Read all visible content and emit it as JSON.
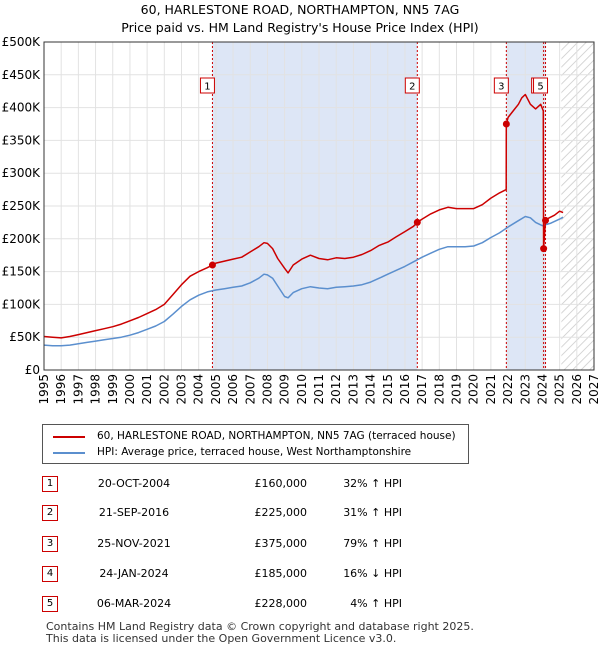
{
  "title_line1": "60, HARLESTONE ROAD, NORTHAMPTON, NN5 7AG",
  "title_line2": "Price paid vs. HM Land Registry's House Price Index (HPI)",
  "chart_data": {
    "type": "line",
    "xlim": [
      1995,
      2027
    ],
    "ylim": [
      0,
      500000
    ],
    "x_ticks": [
      "1995",
      "1996",
      "1997",
      "1998",
      "1999",
      "2000",
      "2001",
      "2002",
      "2003",
      "2004",
      "2005",
      "2006",
      "2007",
      "2008",
      "2009",
      "2010",
      "2011",
      "2012",
      "2013",
      "2014",
      "2015",
      "2016",
      "2017",
      "2018",
      "2019",
      "2020",
      "2021",
      "2022",
      "2023",
      "2024",
      "2025",
      "2026",
      "2027"
    ],
    "y_ticks": [
      {
        "value": 0,
        "label": "£0"
      },
      {
        "value": 50000,
        "label": "£50K"
      },
      {
        "value": 100000,
        "label": "£100K"
      },
      {
        "value": 150000,
        "label": "£150K"
      },
      {
        "value": 200000,
        "label": "£200K"
      },
      {
        "value": 250000,
        "label": "£250K"
      },
      {
        "value": 300000,
        "label": "£300K"
      },
      {
        "value": 350000,
        "label": "£350K"
      },
      {
        "value": 400000,
        "label": "£400K"
      },
      {
        "value": 450000,
        "label": "£450K"
      },
      {
        "value": 500000,
        "label": "£500K"
      }
    ],
    "shaded_ranges": [
      [
        2004.8,
        2016.72
      ],
      [
        2021.9,
        2024.18
      ]
    ],
    "future_hatch_from": 2025.1,
    "colors": {
      "property": "#cc0000",
      "hpi": "#5b8fce",
      "shade": "#dde6f6",
      "vline": "#cc0000"
    },
    "series": [
      {
        "name": "60, HARLESTONE ROAD, NORTHAMPTON, NN5 7AG (terraced house)",
        "x": [
          1995,
          1995.5,
          1996,
          1996.5,
          1997,
          1997.5,
          1998,
          1998.5,
          1999,
          1999.5,
          2000,
          2000.5,
          2001,
          2001.5,
          2002,
          2002.5,
          2003,
          2003.5,
          2004,
          2004.5,
          2004.8,
          2005,
          2005.5,
          2006,
          2006.5,
          2007,
          2007.5,
          2007.8,
          2008,
          2008.3,
          2008.6,
          2009,
          2009.2,
          2009.5,
          2010,
          2010.5,
          2011,
          2011.5,
          2012,
          2012.5,
          2013,
          2013.5,
          2014,
          2014.5,
          2015,
          2015.5,
          2016,
          2016.5,
          2016.72,
          2017,
          2017.5,
          2018,
          2018.5,
          2019,
          2019.5,
          2020,
          2020.5,
          2021,
          2021.5,
          2021.89,
          2021.9,
          2022,
          2022.3,
          2022.6,
          2022.8,
          2023,
          2023.3,
          2023.6,
          2023.9,
          2024.05,
          2024.07,
          2024.18,
          2024.4,
          2024.7,
          2025,
          2025.2
        ],
        "values": [
          51000,
          50000,
          49000,
          51000,
          54000,
          57000,
          60000,
          63000,
          66000,
          70000,
          75000,
          80000,
          86000,
          92000,
          100000,
          115000,
          130000,
          143000,
          150000,
          156000,
          160000,
          163000,
          166000,
          169000,
          172000,
          180000,
          188000,
          194000,
          193000,
          185000,
          170000,
          155000,
          148000,
          160000,
          169000,
          175000,
          170000,
          168000,
          171000,
          170000,
          172000,
          176000,
          182000,
          190000,
          195000,
          203000,
          211000,
          219000,
          225000,
          230000,
          238000,
          244000,
          248000,
          246000,
          246000,
          246000,
          252000,
          262000,
          270000,
          275000,
          375000,
          385000,
          395000,
          405000,
          415000,
          420000,
          405000,
          398000,
          405000,
          395000,
          185000,
          228000,
          232000,
          236000,
          242000,
          240000
        ]
      },
      {
        "name": "HPI: Average price, terraced house, West Northamptonshire",
        "x": [
          1995,
          1995.5,
          1996,
          1996.5,
          1997,
          1997.5,
          1998,
          1998.5,
          1999,
          1999.5,
          2000,
          2000.5,
          2001,
          2001.5,
          2002,
          2002.5,
          2003,
          2003.5,
          2004,
          2004.5,
          2005,
          2005.5,
          2006,
          2006.5,
          2007,
          2007.5,
          2007.8,
          2008,
          2008.3,
          2008.6,
          2009,
          2009.2,
          2009.5,
          2010,
          2010.5,
          2011,
          2011.5,
          2012,
          2012.5,
          2013,
          2013.5,
          2014,
          2014.5,
          2015,
          2015.5,
          2016,
          2016.5,
          2017,
          2017.5,
          2018,
          2018.5,
          2019,
          2019.5,
          2020,
          2020.5,
          2021,
          2021.5,
          2022,
          2022.5,
          2023,
          2023.3,
          2023.6,
          2024,
          2024.5,
          2025,
          2025.2
        ],
        "values": [
          38000,
          37000,
          37000,
          38000,
          40000,
          42000,
          44000,
          46000,
          48000,
          50000,
          53000,
          57000,
          62000,
          67000,
          74000,
          85000,
          97000,
          107000,
          114000,
          119000,
          122000,
          124000,
          126000,
          128000,
          133000,
          140000,
          146000,
          145000,
          140000,
          128000,
          112000,
          110000,
          118000,
          124000,
          127000,
          125000,
          124000,
          126000,
          127000,
          128000,
          130000,
          134000,
          140000,
          146000,
          152000,
          158000,
          165000,
          172000,
          178000,
          184000,
          188000,
          188000,
          188000,
          189000,
          194000,
          202000,
          209000,
          218000,
          226000,
          234000,
          232000,
          225000,
          220000,
          224000,
          230000,
          233000
        ]
      }
    ],
    "sales": [
      {
        "label": "1",
        "x": 2004.8,
        "value": 160000
      },
      {
        "label": "2",
        "x": 2016.72,
        "value": 225000
      },
      {
        "label": "3",
        "x": 2021.9,
        "value": 375000
      },
      {
        "label": "4",
        "x": 2024.07,
        "value": 185000
      },
      {
        "label": "5",
        "x": 2024.18,
        "value": 228000
      }
    ]
  },
  "legend": {
    "property": "60, HARLESTONE ROAD, NORTHAMPTON, NN5 7AG (terraced house)",
    "hpi": "HPI: Average price, terraced house, West Northamptonshire"
  },
  "transactions": [
    {
      "num": "1",
      "date": "20-OCT-2004",
      "price": "£160,000",
      "hpi": "32% ↑ HPI"
    },
    {
      "num": "2",
      "date": "21-SEP-2016",
      "price": "£225,000",
      "hpi": "31% ↑ HPI"
    },
    {
      "num": "3",
      "date": "25-NOV-2021",
      "price": "£375,000",
      "hpi": "79% ↑ HPI"
    },
    {
      "num": "4",
      "date": "24-JAN-2024",
      "price": "£185,000",
      "hpi": "16% ↓ HPI"
    },
    {
      "num": "5",
      "date": "06-MAR-2024",
      "price": "£228,000",
      "hpi": "4% ↑ HPI"
    }
  ],
  "footer": {
    "line1": "Contains HM Land Registry data © Crown copyright and database right 2025.",
    "line2": "This data is licensed under the Open Government Licence v3.0."
  }
}
